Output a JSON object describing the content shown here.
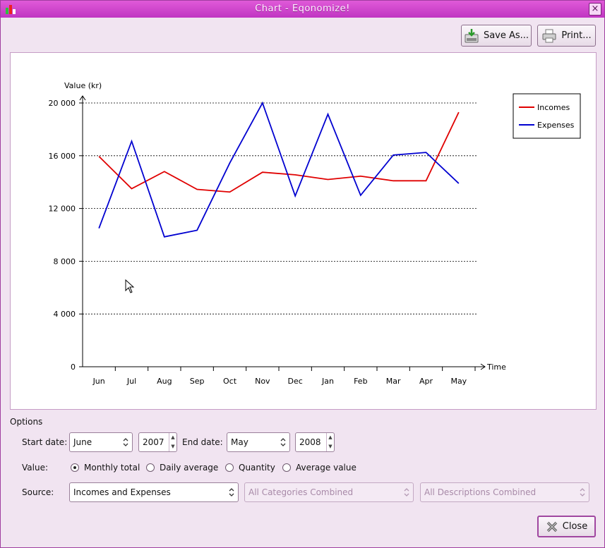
{
  "window": {
    "title": "Chart - Eqonomize!",
    "close_glyph": "×"
  },
  "toolbar": {
    "save_as_label": "Save As...",
    "print_label": "Print..."
  },
  "chart_data": {
    "type": "line",
    "ylabel": "Value (kr)",
    "xlabel": "Time",
    "ylim": [
      0,
      20000
    ],
    "y_ticks": [
      "0",
      "4 000",
      "8 000",
      "12 000",
      "16 000",
      "20 000"
    ],
    "y_tick_values": [
      0,
      4000,
      8000,
      12000,
      16000,
      20000
    ],
    "categories": [
      "Jun",
      "Jul",
      "Aug",
      "Sep",
      "Oct",
      "Nov",
      "Dec",
      "Jan",
      "Feb",
      "Mar",
      "Apr",
      "May"
    ],
    "grid": "horizontal dotted",
    "legend_position": "top-right",
    "series": [
      {
        "name": "Incomes",
        "color": "#e00000",
        "values": [
          15950,
          13500,
          14800,
          13450,
          13250,
          14750,
          14550,
          14200,
          14450,
          14100,
          14100,
          19300
        ]
      },
      {
        "name": "Expenses",
        "color": "#0000d0",
        "values": [
          10500,
          17100,
          9850,
          10350,
          15450,
          20000,
          12950,
          19150,
          13000,
          16050,
          16250,
          13900
        ]
      }
    ]
  },
  "options": {
    "heading": "Options",
    "start_date_label": "Start date:",
    "start_month": "June",
    "start_year": "2007",
    "end_date_label": "End date:",
    "end_month": "May",
    "end_year": "2008",
    "value_label": "Value:",
    "value_options": [
      "Monthly total",
      "Daily average",
      "Quantity",
      "Average value"
    ],
    "value_selected": "Monthly total",
    "source_label": "Source:",
    "source_value": "Incomes and Expenses",
    "categories_value": "All Categories Combined",
    "descriptions_value": "All Descriptions Combined"
  },
  "footer": {
    "close_label": "Close"
  },
  "colors": {
    "accent": "#c035c2",
    "background": "#f1e4f1"
  }
}
